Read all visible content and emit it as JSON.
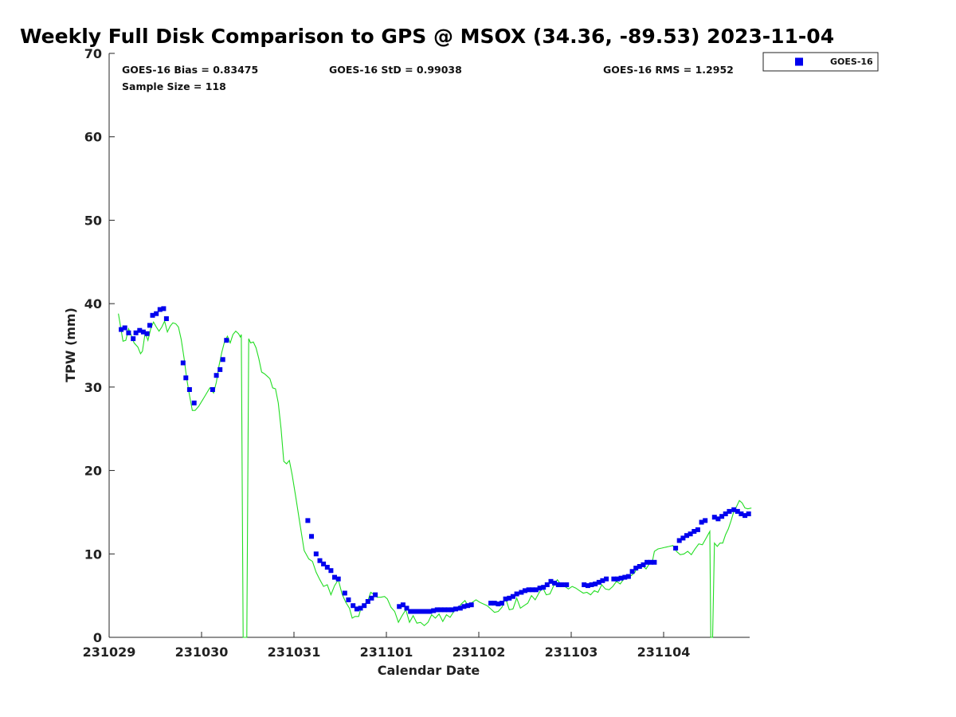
{
  "chart_data": {
    "type": "scatter",
    "title": "Weekly Full Disk Comparison to GPS @ MSOX (34.36, -89.53) 2023-11-04",
    "xlabel": "Calendar Date",
    "ylabel": "TPW (mm)",
    "xlim": [
      0,
      6.95
    ],
    "ylim": [
      0,
      70
    ],
    "yticks": [
      0,
      10,
      20,
      30,
      40,
      50,
      60,
      70
    ],
    "xticks": [
      {
        "value": 0,
        "label": "231029"
      },
      {
        "value": 1,
        "label": "231030"
      },
      {
        "value": 2,
        "label": "231031"
      },
      {
        "value": 3,
        "label": "231101"
      },
      {
        "value": 4,
        "label": "231102"
      },
      {
        "value": 5,
        "label": "231103"
      },
      {
        "value": 6,
        "label": "231104"
      }
    ],
    "stats": {
      "bias": "GOES-16 Bias = 0.83475",
      "std": "GOES-16 StD = 0.99038",
      "rms": "GOES-16 RMS = 1.2952",
      "sample": "Sample Size = 118"
    },
    "legend": {
      "label": "GOES-16",
      "placement": "top-right",
      "color": "#0000ee"
    },
    "series": [
      {
        "name": "GOES-16",
        "kind": "scatter",
        "color": "#0000ee",
        "points": [
          [
            0.13,
            36.9
          ],
          [
            0.17,
            37.1
          ],
          [
            0.21,
            36.5
          ],
          [
            0.26,
            35.8
          ],
          [
            0.29,
            36.5
          ],
          [
            0.33,
            36.8
          ],
          [
            0.37,
            36.6
          ],
          [
            0.41,
            36.4
          ],
          [
            0.44,
            37.4
          ],
          [
            0.47,
            38.6
          ],
          [
            0.51,
            38.8
          ],
          [
            0.55,
            39.3
          ],
          [
            0.59,
            39.4
          ],
          [
            0.62,
            38.2
          ],
          [
            0.8,
            32.9
          ],
          [
            0.83,
            31.1
          ],
          [
            0.87,
            29.7
          ],
          [
            0.92,
            28.1
          ],
          [
            1.12,
            29.7
          ],
          [
            1.16,
            31.4
          ],
          [
            1.2,
            32.1
          ],
          [
            1.23,
            33.3
          ],
          [
            1.27,
            35.6
          ],
          [
            2.15,
            14
          ],
          [
            2.19,
            12.1
          ],
          [
            2.24,
            10
          ],
          [
            2.28,
            9.2
          ],
          [
            2.32,
            8.8
          ],
          [
            2.36,
            8.4
          ],
          [
            2.4,
            8.0
          ],
          [
            2.44,
            7.2
          ],
          [
            2.48,
            7.0
          ],
          [
            2.55,
            5.3
          ],
          [
            2.59,
            4.5
          ],
          [
            2.64,
            3.8
          ],
          [
            2.68,
            3.4
          ],
          [
            2.72,
            3.5
          ],
          [
            2.76,
            3.8
          ],
          [
            2.8,
            4.3
          ],
          [
            2.84,
            4.7
          ],
          [
            2.88,
            5.1
          ],
          [
            3.14,
            3.7
          ],
          [
            3.18,
            3.9
          ],
          [
            3.22,
            3.5
          ],
          [
            3.26,
            3.1
          ],
          [
            3.31,
            3.1
          ],
          [
            3.35,
            3.1
          ],
          [
            3.39,
            3.1
          ],
          [
            3.43,
            3.1
          ],
          [
            3.47,
            3.1
          ],
          [
            3.51,
            3.2
          ],
          [
            3.55,
            3.3
          ],
          [
            3.59,
            3.3
          ],
          [
            3.63,
            3.3
          ],
          [
            3.67,
            3.3
          ],
          [
            3.71,
            3.3
          ],
          [
            3.75,
            3.4
          ],
          [
            3.8,
            3.5
          ],
          [
            3.84,
            3.7
          ],
          [
            3.88,
            3.8
          ],
          [
            3.92,
            3.9
          ],
          [
            4.13,
            4.1
          ],
          [
            4.17,
            4.1
          ],
          [
            4.21,
            4.0
          ],
          [
            4.25,
            4.1
          ],
          [
            4.29,
            4.6
          ],
          [
            4.33,
            4.7
          ],
          [
            4.37,
            4.9
          ],
          [
            4.41,
            5.2
          ],
          [
            4.46,
            5.4
          ],
          [
            4.5,
            5.6
          ],
          [
            4.54,
            5.7
          ],
          [
            4.58,
            5.7
          ],
          [
            4.62,
            5.7
          ],
          [
            4.66,
            5.9
          ],
          [
            4.7,
            6.0
          ],
          [
            4.74,
            6.3
          ],
          [
            4.78,
            6.7
          ],
          [
            4.82,
            6.5
          ],
          [
            4.86,
            6.3
          ],
          [
            4.9,
            6.3
          ],
          [
            4.95,
            6.3
          ],
          [
            5.14,
            6.3
          ],
          [
            5.18,
            6.2
          ],
          [
            5.22,
            6.3
          ],
          [
            5.26,
            6.4
          ],
          [
            5.3,
            6.6
          ],
          [
            5.34,
            6.8
          ],
          [
            5.38,
            7.0
          ],
          [
            5.46,
            7.0
          ],
          [
            5.5,
            7.0
          ],
          [
            5.54,
            7.1
          ],
          [
            5.58,
            7.2
          ],
          [
            5.62,
            7.3
          ],
          [
            5.66,
            7.9
          ],
          [
            5.7,
            8.3
          ],
          [
            5.74,
            8.5
          ],
          [
            5.78,
            8.7
          ],
          [
            5.82,
            9.0
          ],
          [
            5.86,
            9.0
          ],
          [
            5.9,
            9.0
          ],
          [
            6.13,
            10.7
          ],
          [
            6.17,
            11.6
          ],
          [
            6.21,
            11.9
          ],
          [
            6.25,
            12.2
          ],
          [
            6.29,
            12.4
          ],
          [
            6.33,
            12.7
          ],
          [
            6.37,
            12.9
          ],
          [
            6.41,
            13.8
          ],
          [
            6.45,
            14
          ],
          [
            6.55,
            14.4
          ],
          [
            6.59,
            14.2
          ],
          [
            6.63,
            14.5
          ],
          [
            6.67,
            14.8
          ],
          [
            6.71,
            15.1
          ],
          [
            6.76,
            15.3
          ],
          [
            6.8,
            15.1
          ],
          [
            6.84,
            14.8
          ],
          [
            6.88,
            14.6
          ],
          [
            6.92,
            14.8
          ]
        ]
      },
      {
        "name": "GPS",
        "kind": "line",
        "color": "#22dd22",
        "points": [
          [
            0.1,
            38.8
          ],
          [
            0.12,
            37.5
          ],
          [
            0.15,
            35.5
          ],
          [
            0.18,
            35.6
          ],
          [
            0.21,
            37
          ],
          [
            0.24,
            36.2
          ],
          [
            0.27,
            35.3
          ],
          [
            0.31,
            34.8
          ],
          [
            0.34,
            34
          ],
          [
            0.36,
            34.3
          ],
          [
            0.39,
            36.5
          ],
          [
            0.42,
            35.6
          ],
          [
            0.45,
            37
          ],
          [
            0.48,
            37.8
          ],
          [
            0.51,
            37.2
          ],
          [
            0.54,
            36.7
          ],
          [
            0.57,
            37.2
          ],
          [
            0.6,
            37.9
          ],
          [
            0.63,
            36.6
          ],
          [
            0.66,
            37.3
          ],
          [
            0.69,
            37.7
          ],
          [
            0.72,
            37.6
          ],
          [
            0.75,
            37.2
          ],
          [
            0.78,
            35.7
          ],
          [
            0.81,
            33.5
          ],
          [
            0.84,
            31
          ],
          [
            0.87,
            29
          ],
          [
            0.9,
            27.2
          ],
          [
            0.93,
            27.2
          ],
          [
            0.97,
            27.7
          ],
          [
            1.03,
            28.8
          ],
          [
            1.09,
            29.9
          ],
          [
            1.13,
            29.3
          ],
          [
            1.16,
            30.6
          ],
          [
            1.19,
            32.6
          ],
          [
            1.22,
            34.2
          ],
          [
            1.25,
            35.5
          ],
          [
            1.28,
            36.1
          ],
          [
            1.31,
            35.3
          ],
          [
            1.34,
            36.3
          ],
          [
            1.37,
            36.7
          ],
          [
            1.4,
            36.4
          ],
          [
            1.42,
            36
          ],
          [
            1.43,
            36.3
          ],
          [
            1.45,
            0
          ],
          [
            1.49,
            0
          ],
          [
            1.51,
            35.8
          ],
          [
            1.53,
            35.3
          ],
          [
            1.56,
            35.4
          ],
          [
            1.59,
            34.7
          ],
          [
            1.62,
            33.4
          ],
          [
            1.65,
            31.8
          ],
          [
            1.68,
            31.6
          ],
          [
            1.71,
            31.3
          ],
          [
            1.74,
            31
          ],
          [
            1.77,
            29.9
          ],
          [
            1.8,
            29.8
          ],
          [
            1.83,
            28.1
          ],
          [
            1.86,
            25
          ],
          [
            1.89,
            21.1
          ],
          [
            1.92,
            20.8
          ],
          [
            1.95,
            21.2
          ],
          [
            1.98,
            19.5
          ],
          [
            2.02,
            16.8
          ],
          [
            2.06,
            13.9
          ],
          [
            2.11,
            10.4
          ],
          [
            2.16,
            9.4
          ],
          [
            2.2,
            9.1
          ],
          [
            2.24,
            7.8
          ],
          [
            2.28,
            6.9
          ],
          [
            2.32,
            6.1
          ],
          [
            2.36,
            6.3
          ],
          [
            2.4,
            5.1
          ],
          [
            2.44,
            6.2
          ],
          [
            2.48,
            6.9
          ],
          [
            2.52,
            5.2
          ],
          [
            2.56,
            4.2
          ],
          [
            2.6,
            3.5
          ],
          [
            2.63,
            2.3
          ],
          [
            2.66,
            2.5
          ],
          [
            2.7,
            2.5
          ],
          [
            2.73,
            3.7
          ],
          [
            2.76,
            3.9
          ],
          [
            2.8,
            4.4
          ],
          [
            2.83,
            5.4
          ],
          [
            2.87,
            5.1
          ],
          [
            2.9,
            4.8
          ],
          [
            2.94,
            4.8
          ],
          [
            2.98,
            4.9
          ],
          [
            3.01,
            4.6
          ],
          [
            3.05,
            3.6
          ],
          [
            3.09,
            3.1
          ],
          [
            3.13,
            1.8
          ],
          [
            3.17,
            2.6
          ],
          [
            3.21,
            3.3
          ],
          [
            3.25,
            1.8
          ],
          [
            3.29,
            2.6
          ],
          [
            3.33,
            1.7
          ],
          [
            3.37,
            1.8
          ],
          [
            3.41,
            1.4
          ],
          [
            3.45,
            1.8
          ],
          [
            3.49,
            2.7
          ],
          [
            3.53,
            2.3
          ],
          [
            3.57,
            2.8
          ],
          [
            3.61,
            1.9
          ],
          [
            3.65,
            2.7
          ],
          [
            3.69,
            2.4
          ],
          [
            3.73,
            3.1
          ],
          [
            3.77,
            3.4
          ],
          [
            3.81,
            4
          ],
          [
            3.85,
            4.4
          ],
          [
            3.89,
            3.7
          ],
          [
            3.93,
            4.2
          ],
          [
            3.97,
            4.5
          ],
          [
            4.01,
            4.2
          ],
          [
            4.05,
            4
          ],
          [
            4.09,
            3.8
          ],
          [
            4.13,
            3.4
          ],
          [
            4.17,
            3
          ],
          [
            4.21,
            3.1
          ],
          [
            4.25,
            3.6
          ],
          [
            4.29,
            4.7
          ],
          [
            4.33,
            3.3
          ],
          [
            4.37,
            3.4
          ],
          [
            4.41,
            4.7
          ],
          [
            4.45,
            3.5
          ],
          [
            4.49,
            3.8
          ],
          [
            4.53,
            4.1
          ],
          [
            4.57,
            5
          ],
          [
            4.61,
            4.5
          ],
          [
            4.65,
            5.3
          ],
          [
            4.69,
            6
          ],
          [
            4.73,
            5.1
          ],
          [
            4.77,
            5.2
          ],
          [
            4.81,
            6.2
          ],
          [
            4.85,
            6.9
          ],
          [
            4.89,
            6.3
          ],
          [
            4.93,
            6.1
          ],
          [
            4.97,
            5.8
          ],
          [
            5.01,
            6.1
          ],
          [
            5.05,
            5.9
          ],
          [
            5.09,
            5.6
          ],
          [
            5.13,
            5.3
          ],
          [
            5.17,
            5.4
          ],
          [
            5.21,
            5.1
          ],
          [
            5.25,
            5.6
          ],
          [
            5.29,
            5.4
          ],
          [
            5.33,
            6.3
          ],
          [
            5.37,
            5.8
          ],
          [
            5.41,
            5.7
          ],
          [
            5.45,
            6.1
          ],
          [
            5.49,
            6.7
          ],
          [
            5.53,
            6.4
          ],
          [
            5.57,
            7
          ],
          [
            5.61,
            7.5
          ],
          [
            5.65,
            7.4
          ],
          [
            5.69,
            7.8
          ],
          [
            5.73,
            8.7
          ],
          [
            5.77,
            8.6
          ],
          [
            5.81,
            8.2
          ],
          [
            5.85,
            8.9
          ],
          [
            5.88,
            9.2
          ],
          [
            5.9,
            10.3
          ],
          [
            5.94,
            10.6
          ],
          [
            5.98,
            10.7
          ],
          [
            6.02,
            10.8
          ],
          [
            6.06,
            10.9
          ],
          [
            6.1,
            11
          ],
          [
            6.14,
            10.3
          ],
          [
            6.18,
            9.9
          ],
          [
            6.22,
            10
          ],
          [
            6.26,
            10.3
          ],
          [
            6.3,
            9.9
          ],
          [
            6.34,
            10.6
          ],
          [
            6.38,
            11.2
          ],
          [
            6.42,
            11.1
          ],
          [
            6.46,
            11.9
          ],
          [
            6.5,
            12.7
          ],
          [
            6.51,
            0
          ],
          [
            6.53,
            0
          ],
          [
            6.55,
            11.3
          ],
          [
            6.58,
            10.9
          ],
          [
            6.61,
            11.3
          ],
          [
            6.64,
            11.3
          ],
          [
            6.67,
            12.3
          ],
          [
            6.7,
            13
          ],
          [
            6.73,
            14
          ],
          [
            6.76,
            15.1
          ],
          [
            6.79,
            15.7
          ],
          [
            6.82,
            16.4
          ],
          [
            6.85,
            16.1
          ],
          [
            6.88,
            15.5
          ],
          [
            6.91,
            15.4
          ],
          [
            6.95,
            15.5
          ]
        ]
      }
    ]
  }
}
